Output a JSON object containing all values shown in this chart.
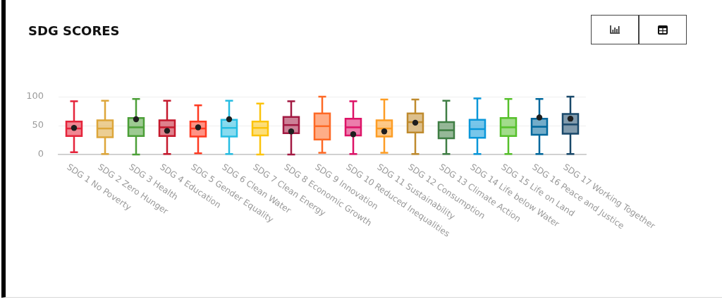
{
  "chart_data": {
    "type": "box",
    "title": "SDG SCORES",
    "categories": [
      "SDG 1 No Poverty",
      "SDG 2 Zero Hunger",
      "SDG 3 Health",
      "SDG 4 Education",
      "SDG 5 Gender Equality",
      "SDG 6 Clean Water",
      "SDG 7 Clean Energy",
      "SDG 8 Economic Growth",
      "SDG 9 Innovation",
      "SDG 10 Reduced Inequalities",
      "SDG 11 Sustainability",
      "SDG 12 Consumption",
      "SDG 13 Climate Action",
      "SDG 14 Life below Water",
      "SDG 15 Life on Land",
      "SDG 16 Peace and Justice",
      "SDG 17 Working Together"
    ],
    "series": [
      {
        "type": "box",
        "colors": [
          "#e5243b",
          "#dda63a",
          "#4c9f38",
          "#c5192d",
          "#ff3a21",
          "#26bde2",
          "#fcc30b",
          "#a21942",
          "#fd6925",
          "#dd1367",
          "#fd9d24",
          "#bf8b2e",
          "#3f7e44",
          "#0a97d9",
          "#56c02b",
          "#00689d",
          "#19486a"
        ],
        "boxes": [
          {
            "low": 4,
            "q1": 32,
            "median": 45,
            "q3": 57,
            "high": 92
          },
          {
            "low": 1,
            "q1": 30,
            "median": 45,
            "q3": 59,
            "high": 93
          },
          {
            "low": 0,
            "q1": 32,
            "median": 47,
            "q3": 63,
            "high": 96
          },
          {
            "low": 1,
            "q1": 32,
            "median": 47,
            "q3": 59,
            "high": 93
          },
          {
            "low": 2,
            "q1": 31,
            "median": 45,
            "q3": 57,
            "high": 85
          },
          {
            "low": 1,
            "q1": 31,
            "median": 46,
            "q3": 60,
            "high": 93
          },
          {
            "low": 0,
            "q1": 33,
            "median": 46,
            "q3": 57,
            "high": 88
          },
          {
            "low": 0,
            "q1": 37,
            "median": 51,
            "q3": 65,
            "high": 92
          },
          {
            "low": 3,
            "q1": 26,
            "median": 49,
            "q3": 71,
            "high": 100
          },
          {
            "low": 1,
            "q1": 33,
            "median": 47,
            "q3": 62,
            "high": 92
          },
          {
            "low": 3,
            "q1": 31,
            "median": 45,
            "q3": 59,
            "high": 95
          },
          {
            "low": 1,
            "q1": 38,
            "median": 56,
            "q3": 71,
            "high": 95
          },
          {
            "low": 1,
            "q1": 28,
            "median": 42,
            "q3": 56,
            "high": 93
          },
          {
            "low": 1,
            "q1": 29,
            "median": 44,
            "q3": 60,
            "high": 97
          },
          {
            "low": 1,
            "q1": 32,
            "median": 47,
            "q3": 63,
            "high": 96
          },
          {
            "low": 1,
            "q1": 34,
            "median": 48,
            "q3": 62,
            "high": 96
          },
          {
            "low": 1,
            "q1": 36,
            "median": 52,
            "q3": 70,
            "high": 100
          }
        ]
      },
      {
        "type": "scatter",
        "color": "#1e1e1e",
        "marker": "circle",
        "x": [
          "SDG 1 No Poverty",
          "SDG 3 Health",
          "SDG 4 Education",
          "SDG 5 Gender Equality",
          "SDG 6 Clean Water",
          "SDG 8 Economic Growth",
          "SDG 10 Reduced Inequalities",
          "SDG 11 Sustainability",
          "SDG 12 Consumption",
          "SDG 16 Peace and Justice",
          "SDG 17 Working Together"
        ],
        "values": [
          46,
          61,
          41,
          47,
          61,
          40,
          35,
          40,
          55,
          64,
          62
        ]
      }
    ],
    "ylim": [
      0,
      100
    ],
    "yticks": [
      0,
      50,
      100
    ],
    "grid": "y"
  }
}
